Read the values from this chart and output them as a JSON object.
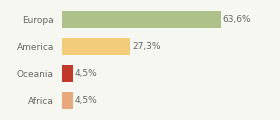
{
  "categories": [
    "Europa",
    "America",
    "Oceania",
    "Africa"
  ],
  "values": [
    63.6,
    27.3,
    4.5,
    4.5
  ],
  "labels": [
    "63,6%",
    "27,3%",
    "4,5%",
    "4,5%"
  ],
  "bar_colors": [
    "#aec18a",
    "#f2cc78",
    "#c0392b",
    "#e8a87c"
  ],
  "background_color": "#f7f7f2",
  "text_color": "#666666",
  "label_fontsize": 6.5,
  "category_fontsize": 6.5,
  "bar_height": 0.62,
  "xlim": [
    0,
    85
  ]
}
